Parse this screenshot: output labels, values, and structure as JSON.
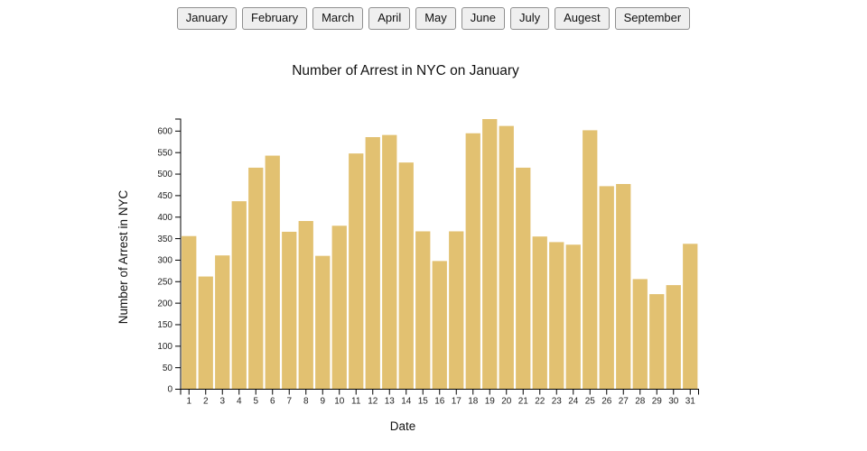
{
  "toolbar": {
    "buttons": [
      "January",
      "February",
      "March",
      "April",
      "May",
      "June",
      "July",
      "Augest",
      "September"
    ]
  },
  "chart_data": {
    "type": "bar",
    "title": "Number of Arrest in NYC on January",
    "xlabel": "Date",
    "ylabel": "Number of Arrest in NYC",
    "categories": [
      1,
      2,
      3,
      4,
      5,
      6,
      7,
      8,
      9,
      10,
      11,
      12,
      13,
      14,
      15,
      16,
      17,
      18,
      19,
      20,
      21,
      22,
      23,
      24,
      25,
      26,
      27,
      28,
      29,
      30,
      31
    ],
    "values": [
      356,
      262,
      311,
      437,
      515,
      543,
      366,
      391,
      310,
      380,
      548,
      586,
      591,
      527,
      367,
      298,
      367,
      595,
      628,
      612,
      515,
      355,
      342,
      336,
      602,
      472,
      477,
      256,
      221,
      242,
      338
    ],
    "ylim": [
      0,
      628
    ],
    "yticks": [
      0,
      50,
      100,
      150,
      200,
      250,
      300,
      350,
      400,
      450,
      500,
      550,
      600
    ],
    "bar_color": "#e2c171",
    "axis_color": "#000000",
    "grid": false,
    "legend": false
  }
}
